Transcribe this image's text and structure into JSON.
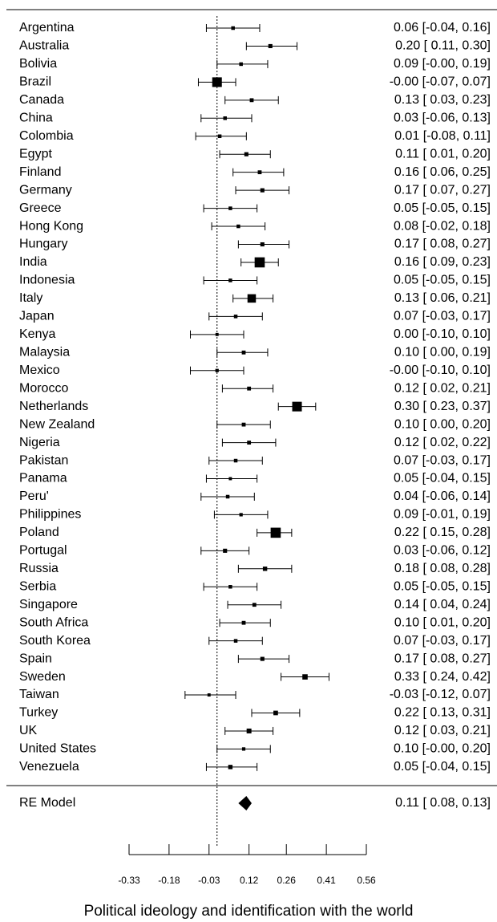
{
  "chart_data": {
    "type": "forest",
    "categories": [
      "Argentina",
      "Australia",
      "Bolivia",
      "Brazil",
      "Canada",
      "China",
      "Colombia",
      "Egypt",
      "Finland",
      "Germany",
      "Greece",
      "Hong Kong",
      "Hungary",
      "India",
      "Indonesia",
      "Italy",
      "Japan",
      "Kenya",
      "Malaysia",
      "Mexico",
      "Morocco",
      "Netherlands",
      "New Zealand",
      "Nigeria",
      "Pakistan",
      "Panama",
      "Peru'",
      "Philippines",
      "Poland",
      "Portugal",
      "Russia",
      "Serbia",
      "Singapore",
      "South Africa",
      "South Korea",
      "Spain",
      "Sweden",
      "Taiwan",
      "Turkey",
      "UK",
      "United States",
      "Venezuela"
    ],
    "values": [
      0.06,
      0.2,
      0.09,
      0,
      0.13,
      0.03,
      0.01,
      0.11,
      0.16,
      0.17,
      0.05,
      0.08,
      0.17,
      0.16,
      0.05,
      0.13,
      0.07,
      0.0,
      0.1,
      0,
      0.12,
      0.3,
      0.1,
      0.12,
      0.07,
      0.05,
      0.04,
      0.09,
      0.22,
      0.03,
      0.18,
      0.05,
      0.14,
      0.1,
      0.07,
      0.17,
      0.33,
      -0.03,
      0.22,
      0.12,
      0.1,
      0.05
    ],
    "ci_lower": [
      -0.04,
      0.11,
      0,
      -0.07,
      0.03,
      -0.06,
      -0.08,
      0.01,
      0.06,
      0.07,
      -0.05,
      -0.02,
      0.08,
      0.09,
      -0.05,
      0.06,
      -0.03,
      -0.1,
      0.0,
      -0.1,
      0.02,
      0.23,
      0.0,
      0.02,
      -0.03,
      -0.04,
      -0.06,
      -0.01,
      0.15,
      -0.06,
      0.08,
      -0.05,
      0.04,
      0.01,
      -0.03,
      0.08,
      0.24,
      -0.12,
      0.13,
      0.03,
      0,
      -0.04
    ],
    "ci_upper": [
      0.16,
      0.3,
      0.19,
      0.07,
      0.23,
      0.13,
      0.11,
      0.2,
      0.25,
      0.27,
      0.15,
      0.18,
      0.27,
      0.23,
      0.15,
      0.21,
      0.17,
      0.1,
      0.19,
      0.1,
      0.21,
      0.37,
      0.2,
      0.22,
      0.17,
      0.15,
      0.14,
      0.19,
      0.28,
      0.12,
      0.28,
      0.15,
      0.24,
      0.2,
      0.17,
      0.27,
      0.42,
      0.07,
      0.31,
      0.21,
      0.2,
      0.15
    ],
    "value_labels": [
      "0.06 [-0.04, 0.16]",
      "0.20 [ 0.11, 0.30]",
      "0.09 [-0.00, 0.19]",
      "-0.00 [-0.07, 0.07]",
      "0.13 [ 0.03, 0.23]",
      "0.03 [-0.06, 0.13]",
      "0.01 [-0.08, 0.11]",
      "0.11 [ 0.01, 0.20]",
      "0.16 [ 0.06, 0.25]",
      "0.17 [ 0.07, 0.27]",
      "0.05 [-0.05, 0.15]",
      "0.08 [-0.02, 0.18]",
      "0.17 [ 0.08, 0.27]",
      "0.16 [ 0.09, 0.23]",
      "0.05 [-0.05, 0.15]",
      "0.13 [ 0.06, 0.21]",
      "0.07 [-0.03, 0.17]",
      "0.00 [-0.10, 0.10]",
      "0.10 [ 0.00, 0.19]",
      "-0.00 [-0.10, 0.10]",
      "0.12 [ 0.02, 0.21]",
      "0.30 [ 0.23, 0.37]",
      "0.10 [ 0.00, 0.20]",
      "0.12 [ 0.02, 0.22]",
      "0.07 [-0.03, 0.17]",
      "0.05 [-0.04, 0.15]",
      "0.04 [-0.06, 0.14]",
      "0.09 [-0.01, 0.19]",
      "0.22 [ 0.15, 0.28]",
      "0.03 [-0.06, 0.12]",
      "0.18 [ 0.08, 0.28]",
      "0.05 [-0.05, 0.15]",
      "0.14 [ 0.04, 0.24]",
      "0.10 [ 0.01, 0.20]",
      "0.07 [-0.03, 0.17]",
      "0.17 [ 0.08, 0.27]",
      "0.33 [ 0.24, 0.42]",
      "-0.03 [-0.12, 0.07]",
      "0.22 [ 0.13, 0.31]",
      "0.12 [ 0.03, 0.21]",
      "0.10 [-0.00, 0.20]",
      "0.05 [-0.04, 0.15]"
    ],
    "weights": [
      1.5,
      1.7,
      1.5,
      4,
      1.6,
      1.5,
      1.5,
      1.7,
      1.6,
      1.7,
      1.5,
      1.5,
      1.7,
      4.2,
      1.5,
      3.5,
      1.5,
      1.3,
      1.6,
      1.4,
      1.6,
      4,
      1.6,
      1.6,
      1.5,
      1.3,
      1.5,
      1.4,
      4.2,
      1.7,
      1.8,
      1.5,
      1.6,
      1.6,
      1.5,
      1.7,
      2.2,
      1.3,
      1.9,
      2,
      1.4,
      1.8
    ],
    "summary": {
      "label": "RE Model",
      "value": 0.11,
      "ci_lower": 0.08,
      "ci_upper": 0.13,
      "value_label": "0.11 [ 0.08, 0.13]"
    },
    "xlabel": "Political ideology and identification with the world",
    "xlim": [
      -0.33,
      0.56
    ],
    "xticks": [
      -0.33,
      -0.18,
      -0.03,
      0.12,
      0.26,
      0.41,
      0.56
    ],
    "reference_line": 0,
    "color": "#000000"
  }
}
